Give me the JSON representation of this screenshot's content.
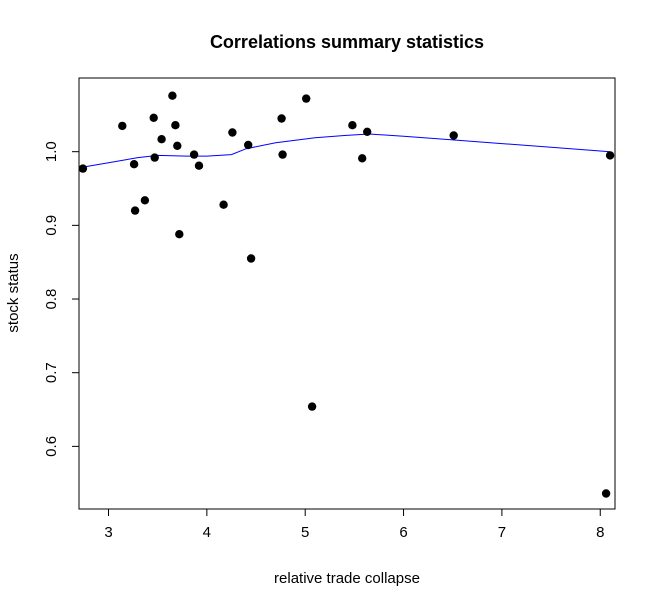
{
  "chart_data": {
    "type": "scatter",
    "title": "Correlations summary statistics",
    "xlabel": "relative trade collapse",
    "ylabel": "stock status",
    "xlim": [
      2.7,
      8.15
    ],
    "ylim": [
      0.515,
      1.1
    ],
    "xticks": [
      3,
      4,
      5,
      6,
      7,
      8
    ],
    "yticks": [
      0.6,
      0.7,
      0.8,
      0.9,
      1.0
    ],
    "ytick_labels": [
      "0.6",
      "0.7",
      "0.8",
      "0.9",
      "1.0"
    ],
    "grid": false,
    "legend": "none",
    "point_color": "#000000",
    "line_color": "#0000ff",
    "points": [
      {
        "x": 2.74,
        "y": 0.977
      },
      {
        "x": 3.14,
        "y": 1.035
      },
      {
        "x": 3.26,
        "y": 0.983
      },
      {
        "x": 3.27,
        "y": 0.92
      },
      {
        "x": 3.37,
        "y": 0.934
      },
      {
        "x": 3.46,
        "y": 1.046
      },
      {
        "x": 3.47,
        "y": 0.992
      },
      {
        "x": 3.54,
        "y": 1.017
      },
      {
        "x": 3.65,
        "y": 1.076
      },
      {
        "x": 3.68,
        "y": 1.036
      },
      {
        "x": 3.7,
        "y": 1.008
      },
      {
        "x": 3.72,
        "y": 0.888
      },
      {
        "x": 3.87,
        "y": 0.996
      },
      {
        "x": 3.92,
        "y": 0.981
      },
      {
        "x": 4.17,
        "y": 0.928
      },
      {
        "x": 4.26,
        "y": 1.026
      },
      {
        "x": 4.42,
        "y": 1.009
      },
      {
        "x": 4.45,
        "y": 0.855
      },
      {
        "x": 4.76,
        "y": 1.045
      },
      {
        "x": 4.77,
        "y": 0.996
      },
      {
        "x": 5.01,
        "y": 1.072
      },
      {
        "x": 5.07,
        "y": 0.654
      },
      {
        "x": 5.48,
        "y": 1.036
      },
      {
        "x": 5.58,
        "y": 0.991
      },
      {
        "x": 5.63,
        "y": 1.027
      },
      {
        "x": 6.51,
        "y": 1.022
      },
      {
        "x": 8.06,
        "y": 0.536
      },
      {
        "x": 8.1,
        "y": 0.995
      }
    ],
    "smooth_line": [
      {
        "x": 2.74,
        "y": 0.979
      },
      {
        "x": 3.0,
        "y": 0.985
      },
      {
        "x": 3.3,
        "y": 0.992
      },
      {
        "x": 3.5,
        "y": 0.995
      },
      {
        "x": 3.8,
        "y": 0.994
      },
      {
        "x": 4.0,
        "y": 0.994
      },
      {
        "x": 4.25,
        "y": 0.996
      },
      {
        "x": 4.4,
        "y": 1.004
      },
      {
        "x": 4.7,
        "y": 1.012
      },
      {
        "x": 5.1,
        "y": 1.019
      },
      {
        "x": 5.4,
        "y": 1.022
      },
      {
        "x": 5.65,
        "y": 1.024
      },
      {
        "x": 6.0,
        "y": 1.021
      },
      {
        "x": 6.5,
        "y": 1.016
      },
      {
        "x": 7.0,
        "y": 1.011
      },
      {
        "x": 7.5,
        "y": 1.006
      },
      {
        "x": 8.1,
        "y": 1.0
      }
    ]
  }
}
